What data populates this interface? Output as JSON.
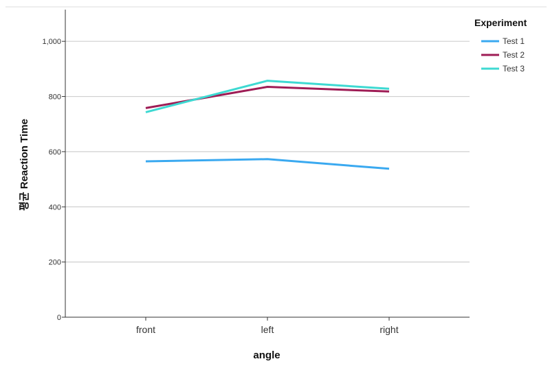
{
  "chart_data": {
    "type": "line",
    "xlabel": "angle",
    "ylabel": "평균 Reaction Time",
    "categories": [
      "front",
      "left",
      "right"
    ],
    "ylim": [
      0,
      1100
    ],
    "yticks": [
      0,
      200,
      400,
      600,
      800,
      1000
    ],
    "ytick_labels": [
      "0",
      "200",
      "400",
      "600",
      "800",
      "1,000"
    ],
    "grid": true,
    "legend": {
      "title": "Experiment",
      "placement": "top-right"
    },
    "series": [
      {
        "name": "Test 1",
        "color": "#3aa9f0",
        "values": [
          565,
          573,
          538
        ]
      },
      {
        "name": "Test 2",
        "color": "#9e1c55",
        "values": [
          758,
          835,
          818
        ]
      },
      {
        "name": "Test 3",
        "color": "#3ed9d2",
        "values": [
          743,
          857,
          828
        ]
      }
    ]
  }
}
